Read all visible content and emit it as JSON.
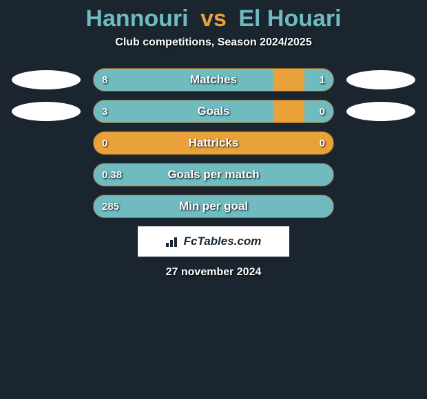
{
  "title": {
    "player1": "Hannouri",
    "vs": "vs",
    "player2": "El Houari",
    "player1_color": "#6fbbbf",
    "vs_color": "#e9a13a",
    "player2_color": "#6fbbbf",
    "fontsize": 34
  },
  "subtitle": {
    "text": "Club competitions, Season 2024/2025",
    "fontsize": 16
  },
  "bar_style": {
    "track_width": 350,
    "track_height": 34,
    "track_radius": 18,
    "track_color": "#e9a13a",
    "fill_color": "#6fbbbf",
    "text_color": "#ffffff",
    "label_fontsize": 17,
    "value_fontsize": 15
  },
  "rows": [
    {
      "label": "Matches",
      "left_value": "8",
      "right_value": "1",
      "left_pct": 75,
      "right_pct": 12,
      "show_left_oval": true,
      "show_right_oval": true
    },
    {
      "label": "Goals",
      "left_value": "3",
      "right_value": "0",
      "left_pct": 75,
      "right_pct": 12,
      "show_left_oval": true,
      "show_right_oval": true
    },
    {
      "label": "Hattricks",
      "left_value": "0",
      "right_value": "0",
      "left_pct": 0,
      "right_pct": 0,
      "show_left_oval": false,
      "show_right_oval": false
    },
    {
      "label": "Goals per match",
      "left_value": "0.38",
      "right_value": "",
      "left_pct": 100,
      "right_pct": 0,
      "show_left_oval": false,
      "show_right_oval": false
    },
    {
      "label": "Min per goal",
      "left_value": "285",
      "right_value": "",
      "left_pct": 100,
      "right_pct": 0,
      "show_left_oval": false,
      "show_right_oval": false
    }
  ],
  "oval": {
    "color": "#ffffff",
    "width": 100,
    "height": 28
  },
  "brand": {
    "text": "FcTables.com",
    "fontsize": 17,
    "box_color": "#ffffff",
    "text_color": "#1a2530"
  },
  "date": {
    "text": "27 november 2024",
    "fontsize": 16
  },
  "background_color": "#1a2530"
}
